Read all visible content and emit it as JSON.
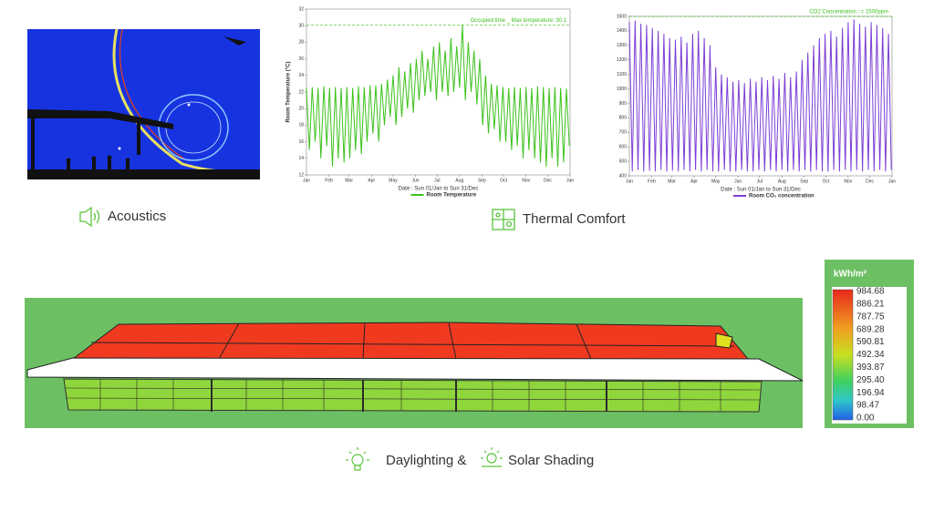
{
  "sections": {
    "acoustics": "Acoustics",
    "thermal": "Thermal Comfort",
    "daylighting": "Daylighting &",
    "shading": "Solar Shading"
  },
  "colorbar": {
    "unit": "kWh/m²",
    "labels": [
      "984.68",
      "886.21",
      "787.75",
      "689.28",
      "590.81",
      "492.34",
      "393.87",
      "295.40",
      "196.94",
      "98.47",
      "0.00"
    ]
  },
  "chart_data": [
    {
      "type": "line",
      "xlabel": "Date : Sun 01/Jan to Sun 31/Dec",
      "ylabel": "Room Temperature (°C)",
      "reference_line": {
        "value": 30.1,
        "label": "Occupied time _ Max temperature: 30.1"
      },
      "xlim": [
        0,
        365
      ],
      "xticks": [
        {
          "value": 0,
          "label": "Jan"
        },
        {
          "value": 31,
          "label": "Feb"
        },
        {
          "value": 59,
          "label": "Mar"
        },
        {
          "value": 90,
          "label": "Apr"
        },
        {
          "value": 120,
          "label": "May"
        },
        {
          "value": 151,
          "label": "Jun"
        },
        {
          "value": 181,
          "label": "Jul"
        },
        {
          "value": 212,
          "label": "Aug"
        },
        {
          "value": 243,
          "label": "Sep"
        },
        {
          "value": 273,
          "label": "Oct"
        },
        {
          "value": 304,
          "label": "Nov"
        },
        {
          "value": 334,
          "label": "Dec"
        },
        {
          "value": 365,
          "label": "Jan"
        }
      ],
      "ylim": [
        12,
        32
      ],
      "yticks": [
        12,
        14,
        16,
        18,
        20,
        22,
        24,
        26,
        28,
        30,
        32
      ],
      "x": [
        0,
        4,
        8,
        12,
        16,
        20,
        24,
        28,
        32,
        36,
        40,
        44,
        48,
        52,
        56,
        60,
        64,
        68,
        72,
        76,
        80,
        84,
        88,
        92,
        96,
        100,
        104,
        108,
        112,
        116,
        120,
        124,
        128,
        132,
        136,
        140,
        144,
        148,
        152,
        156,
        160,
        164,
        168,
        172,
        176,
        180,
        184,
        188,
        192,
        196,
        200,
        204,
        208,
        212,
        216,
        220,
        224,
        228,
        232,
        236,
        240,
        244,
        248,
        252,
        256,
        260,
        264,
        268,
        272,
        276,
        280,
        284,
        288,
        292,
        296,
        300,
        304,
        308,
        312,
        316,
        320,
        324,
        328,
        332,
        336,
        340,
        344,
        348,
        352,
        356,
        360,
        364
      ],
      "series": [
        {
          "name": "Room Temperature",
          "color": "#3cc21c",
          "values": [
            22.5,
            15,
            22.6,
            16,
            22.5,
            14,
            22.7,
            15.5,
            22.5,
            13,
            22.6,
            14,
            22.5,
            13.5,
            22.6,
            14,
            22.5,
            15,
            22.7,
            14.5,
            22.6,
            16,
            22.8,
            17,
            22.8,
            16,
            23,
            18,
            23.5,
            19,
            24,
            18,
            25,
            19,
            24.5,
            20,
            25.5,
            19.5,
            26,
            21,
            27,
            21.5,
            26,
            22,
            27.5,
            21,
            28,
            22,
            27,
            21.5,
            28.5,
            22,
            27.5,
            22.5,
            30.1,
            21,
            28,
            22,
            27,
            20.5,
            26,
            18,
            24,
            17,
            23,
            17.5,
            22.8,
            16,
            22.6,
            16,
            22.5,
            15,
            22.6,
            15.5,
            22.5,
            14,
            22.6,
            15,
            22.5,
            14,
            22.7,
            13.5,
            22.6,
            13,
            22.5,
            14,
            22.6,
            13,
            22.5,
            13.5,
            22.4,
            15.5
          ]
        }
      ]
    },
    {
      "type": "line",
      "xlabel": "Date : Sun 01/Jan to Sun 31/Dec",
      "reference_line": {
        "value": 1500,
        "label": "CO2 Concentration : = 1500ppm"
      },
      "xlim": [
        0,
        365
      ],
      "xticks": [
        {
          "value": 0,
          "label": "Jan"
        },
        {
          "value": 31,
          "label": "Feb"
        },
        {
          "value": 59,
          "label": "Mar"
        },
        {
          "value": 90,
          "label": "Apr"
        },
        {
          "value": 120,
          "label": "May"
        },
        {
          "value": 151,
          "label": "Jun"
        },
        {
          "value": 181,
          "label": "Jul"
        },
        {
          "value": 212,
          "label": "Aug"
        },
        {
          "value": 243,
          "label": "Sep"
        },
        {
          "value": 273,
          "label": "Oct"
        },
        {
          "value": 304,
          "label": "Nov"
        },
        {
          "value": 334,
          "label": "Dec"
        },
        {
          "value": 365,
          "label": "Jan"
        }
      ],
      "ylim": [
        400,
        1500
      ],
      "yticks": [
        400,
        500,
        600,
        700,
        800,
        900,
        1000,
        1100,
        1200,
        1300,
        1400,
        1500
      ],
      "x": [
        0,
        4,
        8,
        12,
        16,
        20,
        24,
        28,
        32,
        36,
        40,
        44,
        48,
        52,
        56,
        60,
        64,
        68,
        72,
        76,
        80,
        84,
        88,
        92,
        96,
        100,
        104,
        108,
        112,
        116,
        120,
        124,
        128,
        132,
        136,
        140,
        144,
        148,
        152,
        156,
        160,
        164,
        168,
        172,
        176,
        180,
        184,
        188,
        192,
        196,
        200,
        204,
        208,
        212,
        216,
        220,
        224,
        228,
        232,
        236,
        240,
        244,
        248,
        252,
        256,
        260,
        264,
        268,
        272,
        276,
        280,
        284,
        288,
        292,
        296,
        300,
        304,
        308,
        312,
        316,
        320,
        324,
        328,
        332,
        336,
        340,
        344,
        348,
        352,
        356,
        360,
        364
      ],
      "series": [
        {
          "name": "Room CO₂ concentration",
          "color": "#7b3fd6",
          "values": [
            1460,
            430,
            1470,
            440,
            1450,
            430,
            1440,
            435,
            1420,
            430,
            1400,
            440,
            1380,
            430,
            1350,
            435,
            1340,
            430,
            1360,
            440,
            1320,
            430,
            1380,
            440,
            1400,
            430,
            1350,
            440,
            1300,
            430,
            1150,
            430,
            1100,
            440,
            1080,
            430,
            1050,
            430,
            1060,
            440,
            1040,
            430,
            1070,
            430,
            1050,
            440,
            1080,
            430,
            1060,
            440,
            1090,
            430,
            1070,
            440,
            1110,
            430,
            1080,
            440,
            1120,
            430,
            1200,
            440,
            1250,
            430,
            1300,
            440,
            1350,
            430,
            1380,
            430,
            1400,
            440,
            1360,
            430,
            1420,
            440,
            1460,
            430,
            1480,
            440,
            1450,
            430,
            1430,
            440,
            1460,
            430,
            1440,
            440,
            1420,
            430,
            1380,
            440
          ]
        }
      ]
    }
  ]
}
